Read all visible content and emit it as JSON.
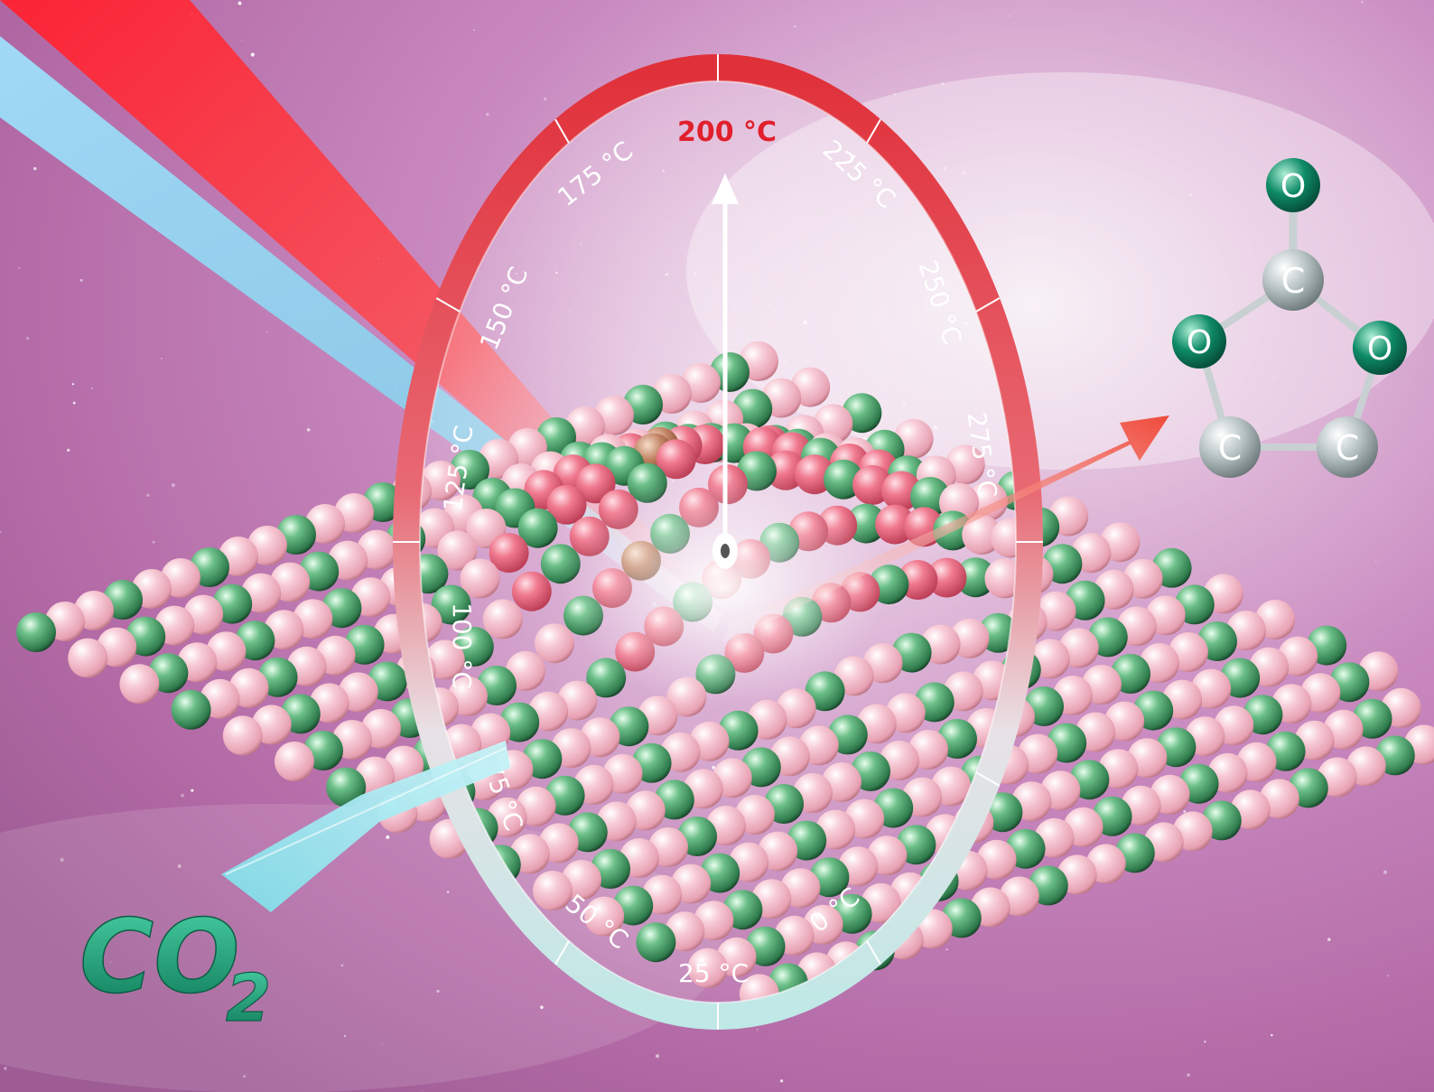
{
  "thermometer": {
    "labels": [
      "0 °C",
      "25 °C",
      "50 °C",
      "75 °C",
      "100 °C",
      "125 °C",
      "150 °C",
      "175 °C",
      "200 °C",
      "225 °C",
      "250 °C",
      "275 °C"
    ],
    "highlighted_label": "200 °C"
  },
  "reactant": {
    "co2_main": "CO",
    "co2_sub": "2"
  },
  "product_molecule": {
    "atoms": [
      "O",
      "C",
      "O",
      "O",
      "C",
      "C"
    ]
  },
  "colors": {
    "background": "#c88ac0",
    "dial_hot": "#e0303a",
    "dial_cold": "#bfe8e6",
    "co2_text": "#1fa07a",
    "oxygen_atom": "#0e8a66",
    "carbon_atom": "#a9b4b6",
    "lattice_pink": "#f3b8c6",
    "lattice_green": "#4aa06a"
  }
}
